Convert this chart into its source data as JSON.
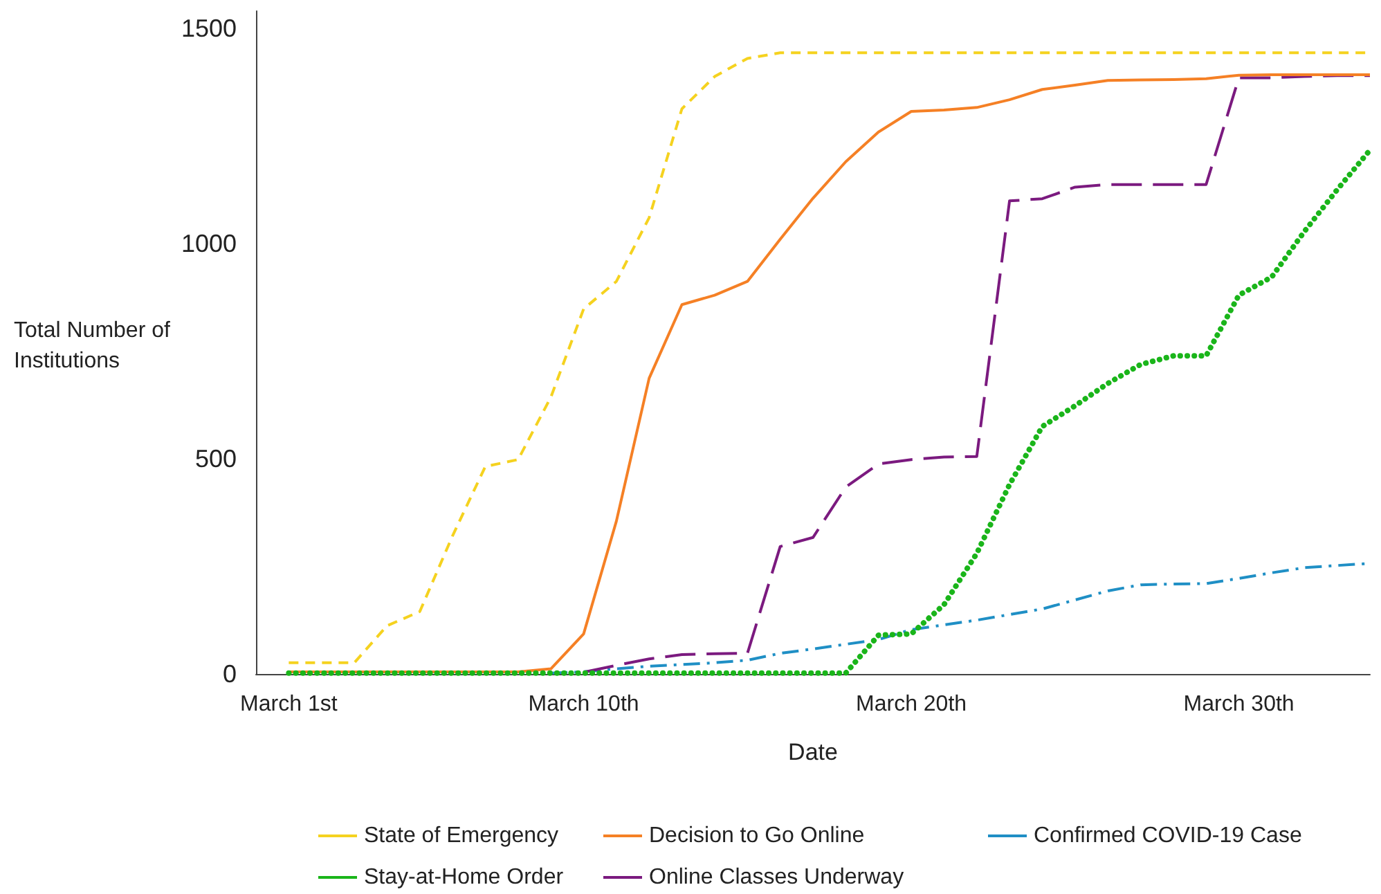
{
  "chart_data": {
    "type": "line",
    "xlabel": "Date",
    "ylabel": "Total Number of Institutions",
    "x": [
      "--03-01",
      "--03-02",
      "--03-03",
      "--03-04",
      "--03-05",
      "--03-06",
      "--03-07",
      "--03-08",
      "--03-09",
      "--03-10",
      "--03-11",
      "--03-12",
      "--03-13",
      "--03-14",
      "--03-15",
      "--03-16",
      "--03-17",
      "--03-18",
      "--03-19",
      "--03-20",
      "--03-21",
      "--03-22",
      "--03-23",
      "--03-24",
      "--03-25",
      "--03-26",
      "--03-27",
      "--03-28",
      "--03-29",
      "--03-30",
      "--03-31",
      "--04-01",
      "--04-02",
      "--04-03"
    ],
    "series": [
      {
        "name": "State of Emergency",
        "color": "#f5d21f",
        "line_style": "dashed",
        "values": [
          26,
          26,
          26,
          112,
          145,
          321,
          482,
          498,
          643,
          848,
          912,
          1060,
          1313,
          1388,
          1430,
          1443,
          1443,
          1443,
          1443,
          1443,
          1443,
          1443,
          1443,
          1443,
          1443,
          1443,
          1443,
          1443,
          1443,
          1443,
          1443,
          1443,
          1443,
          1443
        ]
      },
      {
        "name": "Decision to Go Online",
        "color": "#f58025",
        "line_style": "solid",
        "values": [
          5,
          5,
          5,
          5,
          5,
          5,
          5,
          5,
          12,
          93,
          355,
          687,
          858,
          880,
          912,
          1010,
          1105,
          1190,
          1259,
          1307,
          1310,
          1316,
          1334,
          1358,
          1368,
          1379,
          1380,
          1381,
          1383,
          1391,
          1392,
          1392,
          1392,
          1392
        ]
      },
      {
        "name": "Confirmed COVID-19 Case",
        "color": "#1f8fc5",
        "line_style": "dashed",
        "values": [
          null,
          null,
          null,
          null,
          null,
          null,
          null,
          null,
          2,
          5,
          12,
          18,
          22,
          26,
          32,
          48,
          58,
          69,
          80,
          103,
          114,
          125,
          138,
          151,
          172,
          193,
          207,
          209,
          210,
          222,
          235,
          247,
          252,
          257
        ]
      },
      {
        "name": "Stay-at-Home Order",
        "color": "#1ab51a",
        "line_style": "dotted",
        "values": [
          2,
          2,
          2,
          2,
          2,
          2,
          2,
          2,
          2,
          2,
          2,
          2,
          2,
          2,
          2,
          2,
          2,
          2,
          90,
          93,
          161,
          280,
          440,
          575,
          623,
          675,
          719,
          739,
          739,
          880,
          922,
          1028,
          1125,
          1217
        ]
      },
      {
        "name": "Online Classes Underway",
        "color": "#7b1a7f",
        "line_style": "dashed",
        "values": [
          null,
          null,
          null,
          null,
          null,
          null,
          null,
          null,
          null,
          4,
          20,
          35,
          45,
          47,
          48,
          296,
          317,
          434,
          488,
          498,
          504,
          505,
          1099,
          1104,
          1131,
          1137,
          1137,
          1137,
          1137,
          1385,
          1385,
          1388,
          1390,
          1390
        ]
      }
    ],
    "xlim": [
      "--02-29",
      "--04-03"
    ],
    "xticks": [
      {
        "value": "--03-01",
        "label": "March 1st"
      },
      {
        "value": "--03-10",
        "label": "March 10th"
      },
      {
        "value": "--03-20",
        "label": "March 20th"
      },
      {
        "value": "--03-30",
        "label": "March 30th"
      }
    ],
    "ylim": [
      0,
      1540
    ],
    "yticks": [
      0,
      500,
      1000,
      1500
    ],
    "grid": false,
    "legend": "bottom",
    "marker": "none"
  }
}
